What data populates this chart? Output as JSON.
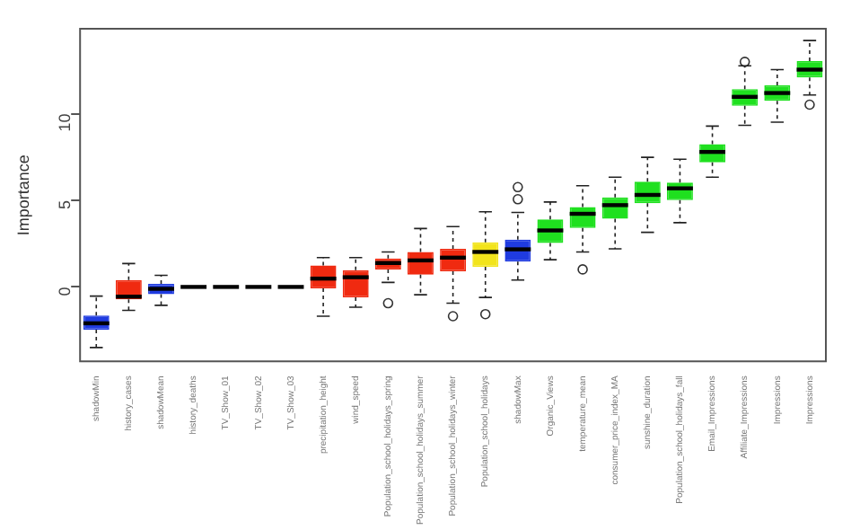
{
  "chart_data": {
    "type": "box",
    "ylabel": "Importance",
    "ylim": [
      -4.3,
      14.9
    ],
    "yticks": [
      0,
      5,
      10
    ],
    "grid": false,
    "legend": false,
    "categories": [
      "shadowMin",
      "history_cases",
      "shadowMean",
      "history_deaths",
      "TV_Show_01",
      "TV_Show_02",
      "TV_Show_03",
      "precipitation_height",
      "wind_speed",
      "Population_school_holidays_spring",
      "Population_school_holidays_summer",
      "Population_school_holidays_winter",
      "Population_school_holidays",
      "shadowMax",
      "Organic_Views",
      "temperature_mean",
      "consumer_price_index_MA",
      "sunshine_duration",
      "Population_school_holidays_fall",
      "Email_Impressions",
      "Affiliate_Impressions",
      "Impressions",
      "Impressions"
    ],
    "colors": [
      "#1f3be0",
      "#f02a10",
      "#1f3be0",
      "#000000",
      "#000000",
      "#000000",
      "#000000",
      "#f02a10",
      "#f02a10",
      "#f02a10",
      "#f02a10",
      "#f02a10",
      "#f2e41c",
      "#1f3be0",
      "#1fe01f",
      "#1fe01f",
      "#1fe01f",
      "#1fe01f",
      "#1fe01f",
      "#1fe01f",
      "#1fe01f",
      "#1fe01f",
      "#1fe01f"
    ],
    "boxes": [
      {
        "low": -3.5,
        "q1": -2.47,
        "median": -2.1,
        "q3": -1.65,
        "high": -0.53
      },
      {
        "low": -1.35,
        "q1": -0.72,
        "median": -0.56,
        "q3": 0.4,
        "high": 1.35
      },
      {
        "low": -1.06,
        "q1": -0.42,
        "median": -0.11,
        "q3": 0.18,
        "high": 0.67
      },
      {
        "low": 0,
        "q1": 0,
        "median": 0,
        "q3": 0,
        "high": 0
      },
      {
        "low": 0,
        "q1": 0,
        "median": 0,
        "q3": 0,
        "high": 0
      },
      {
        "low": 0,
        "q1": 0,
        "median": 0,
        "q3": 0,
        "high": 0
      },
      {
        "low": 0,
        "q1": 0,
        "median": 0,
        "q3": 0,
        "high": 0
      },
      {
        "low": -1.69,
        "q1": -0.08,
        "median": 0.48,
        "q3": 1.24,
        "high": 1.69
      },
      {
        "low": -1.17,
        "q1": -0.6,
        "median": 0.56,
        "q3": 0.97,
        "high": 1.69
      },
      {
        "low": 0.26,
        "q1": 1.01,
        "median": 1.38,
        "q3": 1.64,
        "high": 2.02,
        "outliers": [
          -0.94
        ]
      },
      {
        "low": -0.45,
        "q1": 0.71,
        "median": 1.53,
        "q3": 2.02,
        "high": 3.37
      },
      {
        "low": -0.94,
        "q1": 0.9,
        "median": 1.69,
        "q3": 2.2,
        "high": 3.48,
        "outliers": [
          -1.69
        ]
      },
      {
        "low": -0.61,
        "q1": 1.16,
        "median": 2.02,
        "q3": 2.58,
        "high": 4.34,
        "outliers": [
          -1.57
        ]
      },
      {
        "low": 0.4,
        "q1": 1.46,
        "median": 2.17,
        "q3": 2.73,
        "high": 4.3,
        "outliers": [
          5.76,
          5.06
        ]
      },
      {
        "low": 1.57,
        "q1": 2.54,
        "median": 3.26,
        "q3": 3.89,
        "high": 4.9
      },
      {
        "low": 2.02,
        "q1": 3.4,
        "median": 4.22,
        "q3": 4.61,
        "high": 5.84,
        "outliers": [
          1.01
        ]
      },
      {
        "low": 2.2,
        "q1": 3.93,
        "median": 4.72,
        "q3": 5.17,
        "high": 6.33
      },
      {
        "low": 3.15,
        "q1": 4.83,
        "median": 5.31,
        "q3": 6.07,
        "high": 7.48
      },
      {
        "low": 3.71,
        "q1": 5.01,
        "median": 5.69,
        "q3": 6.02,
        "high": 7.37
      },
      {
        "low": 6.33,
        "q1": 7.19,
        "median": 7.79,
        "q3": 8.24,
        "high": 9.28
      },
      {
        "low": 9.33,
        "q1": 10.45,
        "median": 10.97,
        "q3": 11.42,
        "high": 12.76,
        "outliers": [
          12.99
        ]
      },
      {
        "low": 9.51,
        "q1": 10.74,
        "median": 11.19,
        "q3": 11.64,
        "high": 12.54
      },
      {
        "low": 11.08,
        "q1": 12.09,
        "median": 12.54,
        "q3": 13.03,
        "high": 14.22,
        "outliers": [
          10.52
        ]
      }
    ]
  }
}
